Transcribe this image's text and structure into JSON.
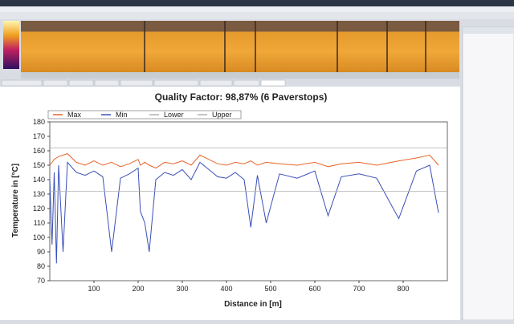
{
  "chart_data": {
    "type": "line",
    "title": "Quality Factor: 98,87% (6 Paverstops)",
    "x_label": "Distance in [m]",
    "y_label": "Temperature in [°C]",
    "x": [
      0,
      5,
      10,
      15,
      20,
      30,
      40,
      60,
      80,
      100,
      120,
      140,
      160,
      180,
      200,
      205,
      215,
      225,
      240,
      260,
      280,
      300,
      320,
      340,
      360,
      380,
      400,
      420,
      440,
      455,
      470,
      490,
      520,
      560,
      600,
      630,
      660,
      700,
      740,
      790,
      830,
      860,
      880
    ],
    "series": [
      {
        "name": "Max",
        "color": "#e8642a",
        "values": [
          150,
          152,
          154,
          155,
          156,
          157,
          158,
          152,
          150,
          153,
          150,
          152,
          149,
          151,
          154,
          150,
          152,
          150,
          148,
          152,
          151,
          153,
          150,
          157,
          154,
          151,
          150,
          152,
          151,
          153,
          150,
          152,
          151,
          150,
          152,
          149,
          151,
          152,
          150,
          153,
          155,
          157,
          150
        ]
      },
      {
        "name": "Min",
        "color": "#3a4fb8",
        "values": [
          140,
          95,
          145,
          82,
          150,
          90,
          152,
          145,
          143,
          146,
          142,
          90,
          141,
          144,
          148,
          118,
          110,
          90,
          140,
          145,
          143,
          147,
          140,
          152,
          147,
          142,
          141,
          145,
          140,
          107,
          143,
          110,
          144,
          141,
          146,
          115,
          142,
          144,
          141,
          113,
          146,
          150,
          117
        ]
      }
    ],
    "reference_lines": [
      {
        "name": "Lower",
        "value": 132,
        "color": "#b0b0b0"
      },
      {
        "name": "Upper",
        "value": 162,
        "color": "#b0b0b0"
      }
    ],
    "xlim": [
      0,
      900
    ],
    "xticks": [
      100,
      200,
      300,
      400,
      500,
      600,
      700,
      800
    ],
    "ylim": [
      70,
      180
    ],
    "yticks": [
      70,
      80,
      90,
      100,
      110,
      120,
      130,
      140,
      150,
      160,
      170,
      180
    ],
    "grid": false
  }
}
